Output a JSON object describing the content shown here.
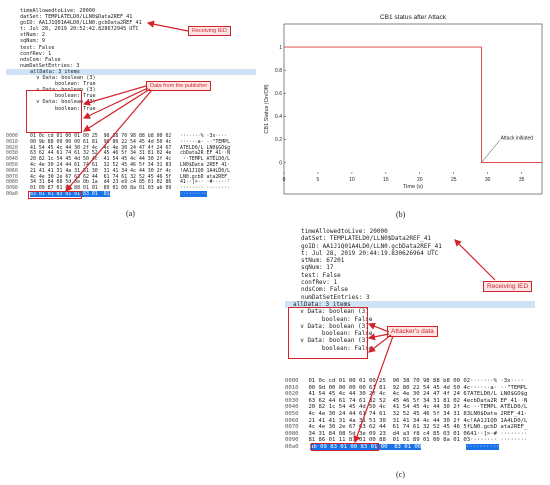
{
  "panel_a": {
    "tree": [
      "timeAllowedtoLive: 20000",
      "datSet: TEMPLATELD0/LLN0$Data2REF_41",
      "goID: AA1J1Q01A4LD0/LLN0.gcbData2REF_41",
      "t: Jul 28, 2019 20:52:42.828672945 UTC",
      "stNum: 2",
      "sqNum: 9",
      "test: False",
      "confRev: 1",
      "ndsCom: False",
      "numDatSetEntries: 3",
      "allData: 3 items",
      "  v Data: boolean (3)",
      "        boolean: True",
      "  v Data: boolean (3)",
      "        boolean: True",
      "  v Data: boolean (3)",
      "        boolean: True"
    ],
    "hex": [
      {
        "off": "0000",
        "bytes": "01 0c cd 01 00 01 00 25  90 38 70 98 88 b8 00 02",
        "ascii": "·······% ·3x····"
      },
      {
        "off": "0010",
        "bytes": "00 9b 88 00 00 00 61 81  90 80 22 54 45 4d 50 4c",
        "ascii": "······a· ··\"TEMPL"
      },
      {
        "off": "0020",
        "bytes": "41 54 45 4c 44 30 2f 4c  4c 4e 30 24 47 4f 24 67",
        "ascii": "ATELD0/L LN0$GO$g"
      },
      {
        "off": "0030",
        "bytes": "63 62 44 61 74 61 32 52  45 46 5f 34 31 81 02 4e",
        "ascii": "cbData2R EF_41··N"
      },
      {
        "off": "0040",
        "bytes": "20 82 1c 54 45 4d 50 4c  41 54 45 4c 44 30 2f 4c",
        "ascii": " ··TEMPL ATELD0/L"
      },
      {
        "off": "0050",
        "bytes": "4c 4e 30 24 44 61 74 61  32 52 45 46 5f 34 31 83",
        "ascii": "LN0$Data 2REF_41·"
      },
      {
        "off": "0060",
        "bytes": "21 41 41 31 4a 31 51 30  31 41 34 4c 44 30 2f 4c",
        "ascii": "!AA1J1Q0 1A4LD0/L"
      },
      {
        "off": "0070",
        "bytes": "4c 4e 30 2e 67 63 62 44  61 74 61 32 52 45 46 5f",
        "ascii": "LN0.gcbD ata2REF_"
      },
      {
        "off": "0080",
        "bytes": "34 31 84 08 5d 3e 0b 1a  d4 23 e9 c4 85 01 02 86",
        "ascii": "41··]>·· ·#······"
      },
      {
        "off": "0090",
        "bytes": "01 09 87 01 00 88 01 01  89 01 00 8a 01 03 ab 09",
        "ascii": "········ ········"
      },
      {
        "off": "00a0",
        "bytes": "83 01 01 83 01 01 83 01  01",
        "ascii": "·········"
      }
    ],
    "annot_ied": "Receiving IED",
    "annot_publisher": "Data from the publisher",
    "caption": "(a)"
  },
  "panel_b": {
    "caption": "(b)",
    "annotation": "Attack initiated"
  },
  "panel_c": {
    "tree": [
      "timeAllowedtoLive: 20000",
      "datSet: TEMPLATELD0/LLN0$Data2REF_41",
      "goID: AA1J1Q01A4LD0/LLN0.gcbData2REF_41",
      "t: Jul 28, 2019 20:44:19.830626964 UTC",
      "stNum: 67201",
      "sqNum: 17",
      "test: False",
      "confRev: 1",
      "ndsCom: False",
      "numDatSetEntries: 3",
      "allData: 3 items",
      "  v Data: boolean (3)",
      "        boolean: False",
      "  v Data: boolean (3)",
      "        boolean: False",
      "  v Data: boolean (3)",
      "        boolean: False"
    ],
    "hex": [
      {
        "off": "0000",
        "bytes": "01 0c cd 01 00 01 00 25  90 38 70 98 88 b8 00 02",
        "ascii": "·······% ·3x····"
      },
      {
        "off": "0010",
        "bytes": "00 9d 00 00 00 00 61 81  92 80 22 54 45 4d 50 4c",
        "ascii": "······a· ··\"TEMPL"
      },
      {
        "off": "0020",
        "bytes": "41 54 45 4c 44 30 2f 4c  4c 4e 30 24 47 4f 24 67",
        "ascii": "ATELD0/L LN0$GO$g"
      },
      {
        "off": "0030",
        "bytes": "63 62 44 61 74 61 32 52  45 46 5f 34 31 81 02 4e",
        "ascii": "cbData2R EF_41··N"
      },
      {
        "off": "0040",
        "bytes": "20 82 1c 54 45 4d 50 4c  41 54 45 4c 44 30 2f 4c",
        "ascii": " ··TEMPL ATELD0/L"
      },
      {
        "off": "0050",
        "bytes": "4c 4e 30 24 44 61 74 61  32 52 45 46 5f 34 31 83",
        "ascii": "LN0$Data 2REF_41·"
      },
      {
        "off": "0060",
        "bytes": "21 41 41 31 4a 31 51 30  31 41 34 4c 44 30 2f 4c",
        "ascii": "!AA1J1Q0 1A4LD0/L"
      },
      {
        "off": "0070",
        "bytes": "4c 4e 30 2e 67 63 62 44  61 74 61 32 52 45 46 5f",
        "ascii": "LN0.gcbD ata2REF_"
      },
      {
        "off": "0080",
        "bytes": "34 31 84 08 5d 3e 09 23  d4 a3 f8 c4 85 03 01 06",
        "ascii": "41··]>·# ········"
      },
      {
        "off": "0090",
        "bytes": "81 86 01 11 87 01 00 88  01 01 89 01 00 8a 01 03",
        "ascii": "········ ········"
      },
      {
        "off": "00a0",
        "bytes": "ab 09 83 01 00 83 01 00  83 01 00",
        "ascii": "··········"
      }
    ],
    "annot_ied": "Receiving IED",
    "annot_attacker": "Attacker's data",
    "caption": "(c)"
  },
  "colors": {
    "annotation_red": "#d3222a",
    "selection_blue": "#cfe3f7",
    "hex_highlight": "#1a73e8",
    "signal_line": "#e03b3b"
  },
  "chart_data": {
    "type": "line",
    "title": "CB1 status after Attack",
    "xlabel": "Time (s)",
    "ylabel": "CB1 Status (On/Off)",
    "xlim": [
      0,
      38
    ],
    "ylim": [
      -0.1,
      1.2
    ],
    "xticks": [
      0,
      5,
      10,
      15,
      20,
      25,
      30,
      35
    ],
    "yticks": [
      0,
      0.2,
      0.4,
      0.6,
      0.8,
      1
    ],
    "grid": false,
    "series": [
      {
        "x": [
          0,
          29.1,
          29.1,
          38
        ],
        "y": [
          1,
          1,
          0,
          0
        ],
        "color": "#e03b3b"
      }
    ],
    "annotations": [
      {
        "text": "Attack initiated",
        "x": 29.1,
        "y": 0
      }
    ]
  }
}
